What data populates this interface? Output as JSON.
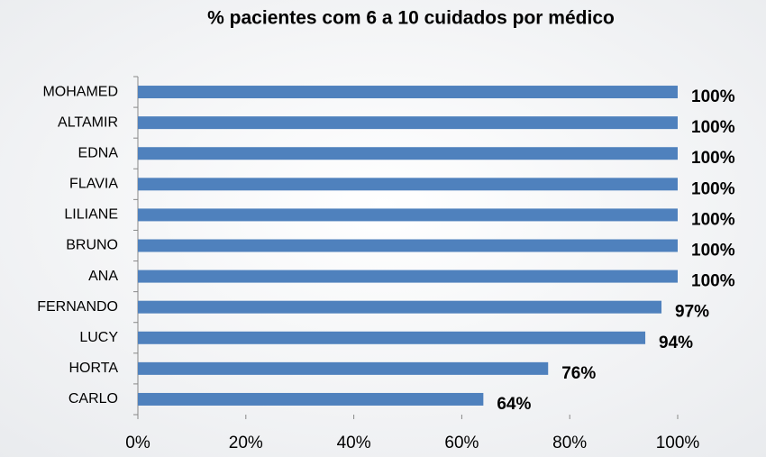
{
  "chart_data": {
    "type": "bar",
    "orientation": "horizontal",
    "title": "%  pacientes com  6 a 10 cuidados por médico",
    "categories": [
      "MOHAMED",
      "ALTAMIR",
      "EDNA",
      "FLAVIA",
      "LILIANE",
      "BRUNO",
      "ANA",
      "FERNANDO",
      "LUCY",
      "HORTA",
      "CARLO"
    ],
    "values": [
      100,
      100,
      100,
      100,
      100,
      100,
      100,
      97,
      94,
      76,
      64
    ],
    "value_labels": [
      "100%",
      "100%",
      "100%",
      "100%",
      "100%",
      "100%",
      "100%",
      "97%",
      "94%",
      "76%",
      "64%"
    ],
    "color": "#4f81bd",
    "xlim": [
      0,
      100
    ],
    "xticks": [
      {
        "value": 0,
        "label": "0%"
      },
      {
        "value": 20,
        "label": "20%"
      },
      {
        "value": 40,
        "label": "40%"
      },
      {
        "value": 60,
        "label": "60%"
      },
      {
        "value": 80,
        "label": "80%"
      },
      {
        "value": 100,
        "label": "100%"
      }
    ],
    "grid": false
  }
}
